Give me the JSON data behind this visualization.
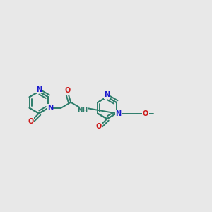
{
  "background_color": "#e8e8e8",
  "bond_color": "#2d7d6b",
  "nitrogen_color": "#1a1acc",
  "oxygen_color": "#cc1a1a",
  "figsize": [
    3.0,
    3.0
  ],
  "dpi": 100,
  "xlim": [
    0,
    12
  ],
  "ylim": [
    0,
    10
  ]
}
